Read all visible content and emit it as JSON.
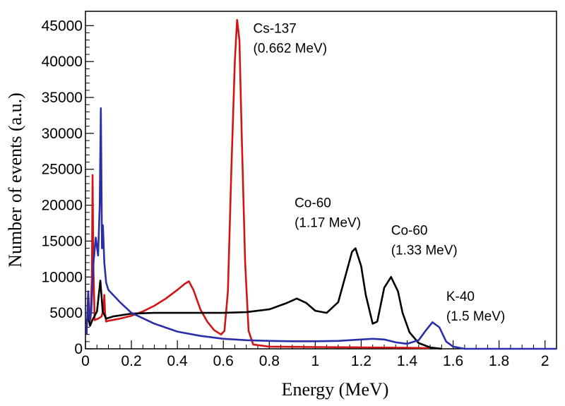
{
  "chart_data": {
    "type": "line",
    "xlabel": "Energy (MeV)",
    "ylabel": "Number of events (a.u.)",
    "xlim": [
      0,
      2.05
    ],
    "ylim": [
      0,
      47000
    ],
    "grid": false,
    "legend": "none",
    "x_ticks": [
      0,
      0.2,
      0.4,
      0.6,
      0.8,
      1,
      1.2,
      1.4,
      1.6,
      1.8,
      2
    ],
    "x_tick_labels": [
      "0",
      "0.2",
      "0.4",
      "0.6",
      "0.8",
      "1",
      "1.2",
      "1.4",
      "1.6",
      "1.8",
      "2"
    ],
    "y_ticks": [
      0,
      5000,
      10000,
      15000,
      20000,
      25000,
      30000,
      35000,
      40000,
      45000
    ],
    "y_tick_labels": [
      "0",
      "5000",
      "10000",
      "15000",
      "20000",
      "25000",
      "30000",
      "35000",
      "40000",
      "45000"
    ],
    "series": [
      {
        "color": "#d21414",
        "points": [
          [
            0.005,
            3500
          ],
          [
            0.012,
            5000
          ],
          [
            0.018,
            3800
          ],
          [
            0.022,
            4200
          ],
          [
            0.028,
            10000
          ],
          [
            0.031,
            24200
          ],
          [
            0.034,
            12000
          ],
          [
            0.04,
            4000
          ],
          [
            0.055,
            4200
          ],
          [
            0.07,
            4500
          ],
          [
            0.078,
            5500
          ],
          [
            0.082,
            7500
          ],
          [
            0.085,
            5000
          ],
          [
            0.09,
            3800
          ],
          [
            0.1,
            3900
          ],
          [
            0.15,
            4200
          ],
          [
            0.2,
            4600
          ],
          [
            0.25,
            5200
          ],
          [
            0.3,
            6000
          ],
          [
            0.35,
            7000
          ],
          [
            0.4,
            8200
          ],
          [
            0.43,
            9000
          ],
          [
            0.45,
            9400
          ],
          [
            0.47,
            8200
          ],
          [
            0.5,
            5500
          ],
          [
            0.53,
            3800
          ],
          [
            0.56,
            2600
          ],
          [
            0.59,
            2000
          ],
          [
            0.605,
            2500
          ],
          [
            0.62,
            8000
          ],
          [
            0.635,
            25000
          ],
          [
            0.65,
            40000
          ],
          [
            0.66,
            45800
          ],
          [
            0.67,
            43000
          ],
          [
            0.68,
            30000
          ],
          [
            0.695,
            12000
          ],
          [
            0.71,
            2500
          ],
          [
            0.73,
            600
          ],
          [
            0.8,
            300
          ],
          [
            1,
            250
          ],
          [
            1.2,
            200
          ],
          [
            1.4,
            150
          ],
          [
            1.5,
            100
          ]
        ]
      },
      {
        "color": "#000000",
        "points": [
          [
            0.005,
            3500
          ],
          [
            0.012,
            4500
          ],
          [
            0.02,
            3200
          ],
          [
            0.03,
            4000
          ],
          [
            0.05,
            5200
          ],
          [
            0.065,
            9500
          ],
          [
            0.075,
            5200
          ],
          [
            0.09,
            4200
          ],
          [
            0.12,
            4500
          ],
          [
            0.2,
            4900
          ],
          [
            0.3,
            5000
          ],
          [
            0.4,
            5000
          ],
          [
            0.5,
            5000
          ],
          [
            0.6,
            5000
          ],
          [
            0.7,
            5100
          ],
          [
            0.8,
            5500
          ],
          [
            0.87,
            6300
          ],
          [
            0.92,
            7000
          ],
          [
            0.96,
            6400
          ],
          [
            1.0,
            5300
          ],
          [
            1.05,
            5000
          ],
          [
            1.1,
            6500
          ],
          [
            1.13,
            10000
          ],
          [
            1.16,
            13500
          ],
          [
            1.175,
            14000
          ],
          [
            1.2,
            11500
          ],
          [
            1.22,
            7500
          ],
          [
            1.25,
            3500
          ],
          [
            1.27,
            3800
          ],
          [
            1.3,
            8500
          ],
          [
            1.33,
            10000
          ],
          [
            1.36,
            8000
          ],
          [
            1.38,
            5000
          ],
          [
            1.41,
            2300
          ],
          [
            1.45,
            800
          ],
          [
            1.5,
            200
          ],
          [
            1.55,
            0
          ]
        ]
      },
      {
        "color": "#2a2fa8",
        "points": [
          [
            0.005,
            2000
          ],
          [
            0.012,
            8000
          ],
          [
            0.018,
            4000
          ],
          [
            0.025,
            5000
          ],
          [
            0.035,
            12000
          ],
          [
            0.045,
            15500
          ],
          [
            0.055,
            13000
          ],
          [
            0.062,
            20000
          ],
          [
            0.067,
            33500
          ],
          [
            0.072,
            14000
          ],
          [
            0.076,
            17200
          ],
          [
            0.082,
            12000
          ],
          [
            0.09,
            9200
          ],
          [
            0.1,
            8200
          ],
          [
            0.15,
            6500
          ],
          [
            0.2,
            5000
          ],
          [
            0.3,
            3500
          ],
          [
            0.4,
            2400
          ],
          [
            0.5,
            1800
          ],
          [
            0.6,
            1400
          ],
          [
            0.7,
            1200
          ],
          [
            0.8,
            1100
          ],
          [
            0.9,
            1050
          ],
          [
            1.0,
            1050
          ],
          [
            1.1,
            1100
          ],
          [
            1.2,
            1300
          ],
          [
            1.25,
            1400
          ],
          [
            1.3,
            1300
          ],
          [
            1.35,
            900
          ],
          [
            1.4,
            700
          ],
          [
            1.45,
            1200
          ],
          [
            1.48,
            2500
          ],
          [
            1.51,
            3700
          ],
          [
            1.54,
            3000
          ],
          [
            1.57,
            1000
          ],
          [
            1.6,
            300
          ],
          [
            1.65,
            0
          ],
          [
            1.8,
            0
          ],
          [
            2.0,
            0
          ],
          [
            2.05,
            0
          ]
        ]
      }
    ],
    "annotations": [
      {
        "lines": [
          "Cs-137",
          "(0.662 MeV)"
        ],
        "x": 0.73,
        "y": 44000
      },
      {
        "lines": [
          "Co-60",
          "(1.17 MeV)"
        ],
        "x": 0.91,
        "y": 19700
      },
      {
        "lines": [
          "Co-60",
          "(1.33 MeV)"
        ],
        "x": 1.33,
        "y": 15900
      },
      {
        "lines": [
          "K-40",
          "(1.5 MeV)"
        ],
        "x": 1.57,
        "y": 6700
      }
    ]
  }
}
